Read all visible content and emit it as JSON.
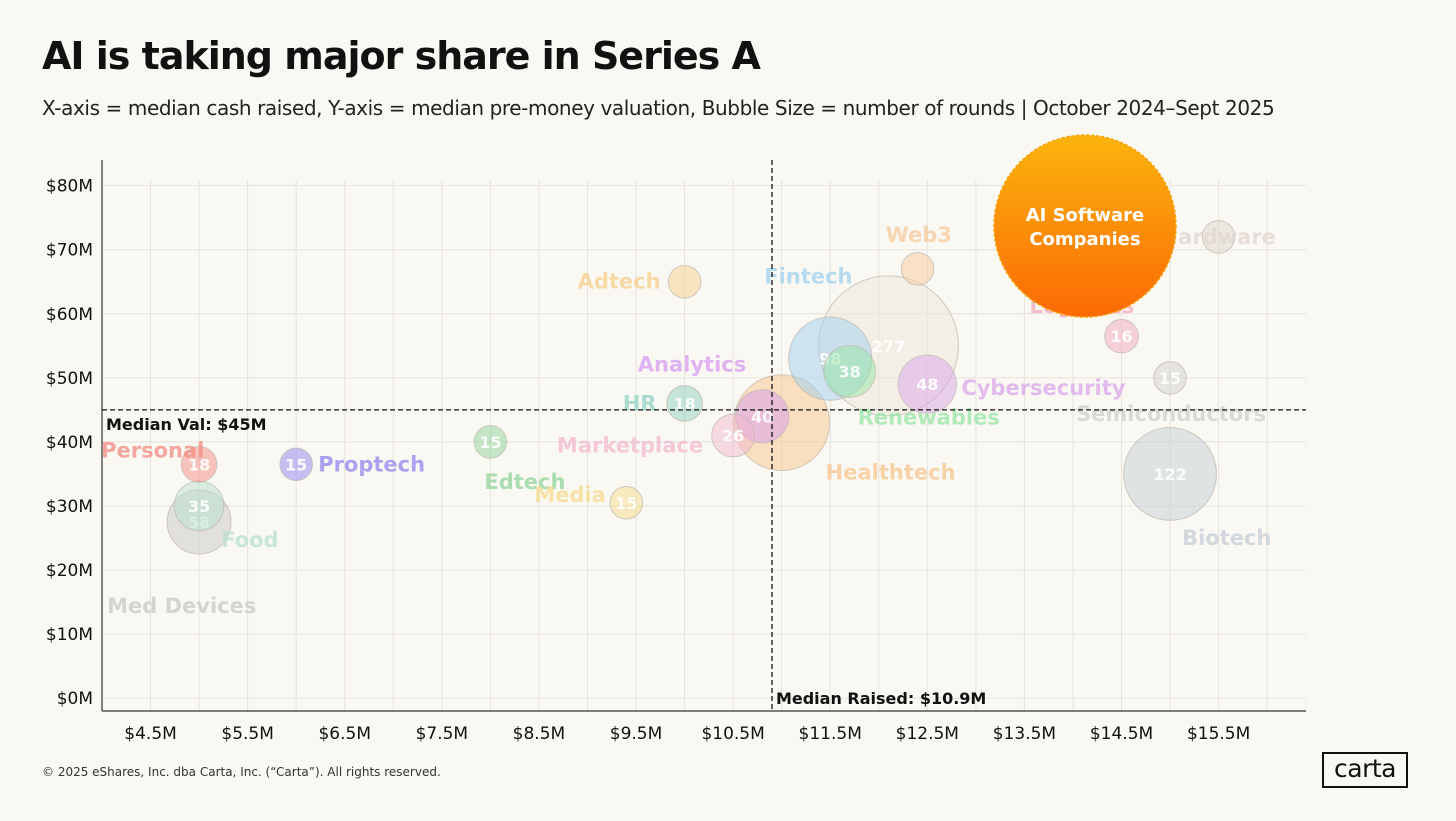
{
  "title": "AI is taking major share in Series A",
  "subtitle": "X-axis = median cash raised, Y-axis = median pre-money valuation, Bubble Size = number of rounds | October 2024–Sept 2025",
  "footer": "© 2025 eShares, Inc. dba Carta, Inc. (“Carta”). All rights reserved.",
  "logo": "carta",
  "chart_data": {
    "type": "scatter",
    "xlabel": "",
    "ylabel": "",
    "xlim": [
      4.0,
      16.4
    ],
    "ylim": [
      -2,
      84
    ],
    "x_ticks": [
      4.5,
      5.5,
      6.5,
      7.5,
      8.5,
      9.5,
      10.5,
      11.5,
      12.5,
      13.5,
      14.5,
      15.5
    ],
    "x_tick_labels": [
      "$4.5M",
      "$5.5M",
      "$6.5M",
      "$7.5M",
      "$8.5M",
      "$9.5M",
      "$10.5M",
      "$11.5M",
      "$12.5M",
      "$13.5M",
      "$14.5M",
      "$15.5M"
    ],
    "y_ticks": [
      0,
      10,
      20,
      30,
      40,
      50,
      60,
      70,
      80
    ],
    "y_tick_labels": [
      "$0M",
      "$10M",
      "$20M",
      "$30M",
      "$40M",
      "$50M",
      "$60M",
      "$70M",
      "$80M"
    ],
    "grid": true,
    "median_x": 10.9,
    "median_y": 45,
    "median_x_label": "Median Raised: $10.9M",
    "median_y_label": "Median Val: $45M",
    "series": [
      {
        "name": "Personal",
        "x": 5.0,
        "y": 36.5,
        "count": "18",
        "size": 18,
        "color": "#f28b82"
      },
      {
        "name": "Food",
        "x": 5.0,
        "y": 30.0,
        "count": "35",
        "size": 35,
        "color": "#b8e0cc"
      },
      {
        "name": "Med Devices",
        "x": 5.0,
        "y": 27.5,
        "count": "58",
        "size": 58,
        "color": "#c8c8c8"
      },
      {
        "name": "Proptech",
        "x": 6.0,
        "y": 36.5,
        "count": "15",
        "size": 15,
        "color": "#8f86f0"
      },
      {
        "name": "Edtech",
        "x": 8.0,
        "y": 40.0,
        "count": "15",
        "size": 15,
        "color": "#8fd49a"
      },
      {
        "name": "Media",
        "x": 9.4,
        "y": 30.5,
        "count": "15",
        "size": 15,
        "color": "#f5d98a"
      },
      {
        "name": "Adtech",
        "x": 10.0,
        "y": 65.0,
        "count": "",
        "size": 15,
        "color": "#f5cf8c"
      },
      {
        "name": "HR",
        "x": 10.0,
        "y": 46.0,
        "count": "18",
        "size": 18,
        "color": "#8fd1c4"
      },
      {
        "name": "Marketplace",
        "x": 10.5,
        "y": 41.0,
        "count": "26",
        "size": 26,
        "color": "#f2b8cf"
      },
      {
        "name": "Analytics",
        "x": 10.8,
        "y": 44.0,
        "count": "40",
        "size": 40,
        "color": "#d89bf0"
      },
      {
        "name": "Healthtech",
        "x": 11.0,
        "y": 43.0,
        "count": "",
        "size": 130,
        "color": "#f7c48e"
      },
      {
        "name": "Fintech",
        "x": 11.5,
        "y": 53.0,
        "count": "98",
        "size": 98,
        "color": "#9fd0ee"
      },
      {
        "name": "Renewables",
        "x": 11.7,
        "y": 51.0,
        "count": "38",
        "size": 38,
        "color": "#95e6a4"
      },
      {
        "name": "",
        "x": 12.1,
        "y": 55.0,
        "count": "277",
        "size": 277,
        "color": "#ece6da"
      },
      {
        "name": "Cybersecurity",
        "x": 12.5,
        "y": 49.0,
        "count": "48",
        "size": 48,
        "color": "#d9a5e8"
      },
      {
        "name": "Web3",
        "x": 12.4,
        "y": 67.0,
        "count": "",
        "size": 15,
        "color": "#f5c99a"
      },
      {
        "name": "Logistics",
        "x": 14.5,
        "y": 56.5,
        "count": "16",
        "size": 16,
        "color": "#f0a8c0"
      },
      {
        "name": "Semiconductors",
        "x": 15.0,
        "y": 50.0,
        "count": "15",
        "size": 15,
        "color": "#cfcfcf"
      },
      {
        "name": "Biotech",
        "x": 15.0,
        "y": 35.0,
        "count": "122",
        "size": 122,
        "color": "#c4cdd6"
      },
      {
        "name": "Hardware",
        "x": 15.5,
        "y": 72.0,
        "count": "",
        "size": 15,
        "color": "#e0d6d0"
      }
    ],
    "highlight": {
      "name": "AI Software Companies",
      "line1": "AI Software",
      "line2": "Companies",
      "x": 14.0,
      "y": 74.0,
      "color_top": "#fbb40d",
      "color_bottom": "#fb6a04"
    }
  }
}
